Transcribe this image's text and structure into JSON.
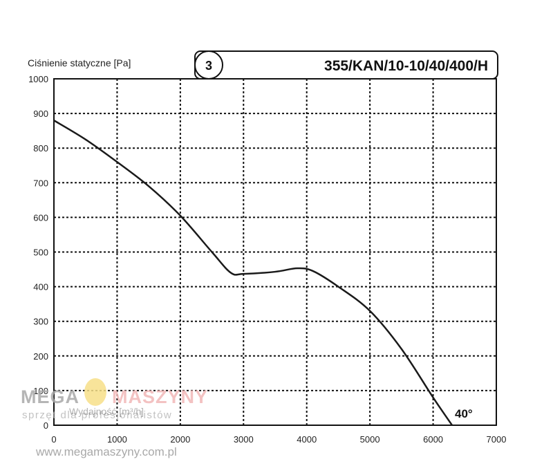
{
  "chart_data": {
    "type": "line",
    "ylabel": "Ciśnienie statyczne [Pa]",
    "xlabel": "Wydajność [m³/h]",
    "model_label": "355/KAN/10-10/40/400/H",
    "badge": "3",
    "x_ticks": [
      "0",
      "1000",
      "2000",
      "3000",
      "4000",
      "5000",
      "6000",
      "7000"
    ],
    "y_ticks": [
      "0",
      "100",
      "200",
      "300",
      "400",
      "500",
      "600",
      "700",
      "800",
      "900",
      "1000"
    ],
    "xlim": [
      0,
      7000
    ],
    "ylim": [
      0,
      1000
    ],
    "grid": true,
    "series": [
      {
        "name": "40°",
        "x": [
          0,
          500,
          1000,
          1500,
          2000,
          2500,
          2800,
          3000,
          3500,
          3850,
          4100,
          4500,
          5000,
          5500,
          6000,
          6300
        ],
        "y": [
          880,
          825,
          760,
          690,
          605,
          500,
          440,
          437,
          443,
          453,
          445,
          400,
          330,
          220,
          80,
          0
        ]
      }
    ]
  },
  "watermark": {
    "brand_left": "MEGA",
    "brand_right": "MASZYNY",
    "tagline": "sprzęt dla profesjonalistów",
    "url": "www.megamaszyny.com.pl",
    "brand_left_color": "#a9a9a9",
    "brand_right_color": "#f2b8b8"
  },
  "colors": {
    "grid": "#111111",
    "curve": "#1a1a1a"
  }
}
